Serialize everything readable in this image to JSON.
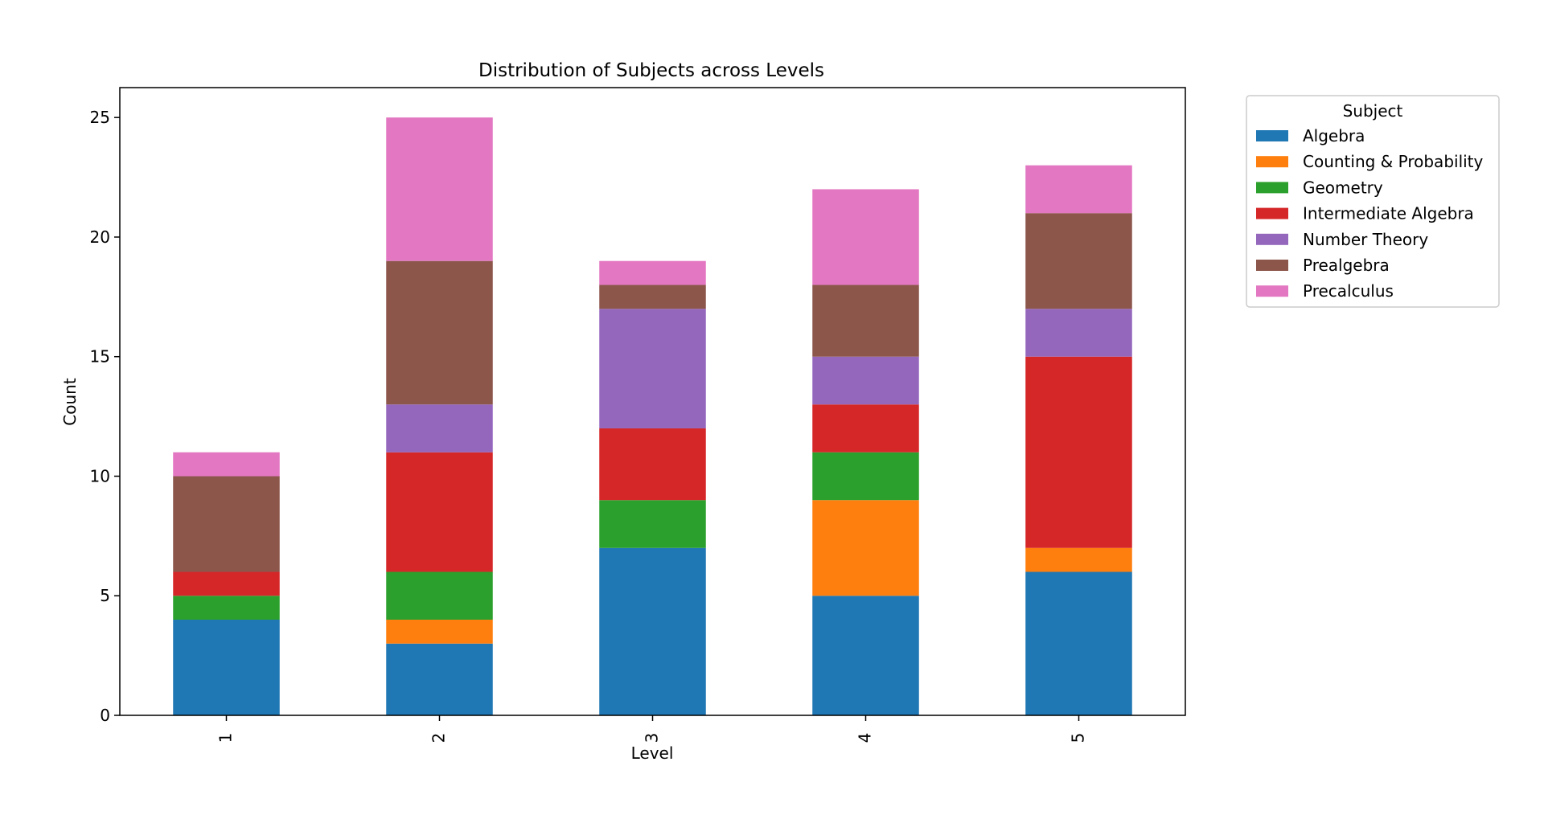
{
  "chart_data": {
    "type": "bar",
    "stacked": true,
    "title": "Distribution of Subjects across Levels",
    "xlabel": "Level",
    "ylabel": "Count",
    "categories": [
      "1",
      "2",
      "3",
      "4",
      "5"
    ],
    "ylim": [
      0,
      26.25
    ],
    "yticks": [
      0,
      5,
      10,
      15,
      20,
      25
    ],
    "grid": false,
    "legend": {
      "title": "Subject",
      "placement": "outside-top-right"
    },
    "series": [
      {
        "name": "Algebra",
        "color": "#1f77b4",
        "values": [
          4,
          3,
          7,
          5,
          6
        ]
      },
      {
        "name": "Counting & Probability",
        "color": "#ff7f0e",
        "values": [
          0,
          1,
          0,
          4,
          1
        ]
      },
      {
        "name": "Geometry",
        "color": "#2ca02c",
        "values": [
          1,
          2,
          2,
          2,
          0
        ]
      },
      {
        "name": "Intermediate Algebra",
        "color": "#d62728",
        "values": [
          1,
          5,
          3,
          2,
          8
        ]
      },
      {
        "name": "Number Theory",
        "color": "#9467bd",
        "values": [
          0,
          2,
          5,
          2,
          2
        ]
      },
      {
        "name": "Prealgebra",
        "color": "#8c564b",
        "values": [
          4,
          6,
          1,
          3,
          4
        ]
      },
      {
        "name": "Precalculus",
        "color": "#e377c2",
        "values": [
          1,
          6,
          1,
          4,
          2
        ]
      }
    ]
  }
}
